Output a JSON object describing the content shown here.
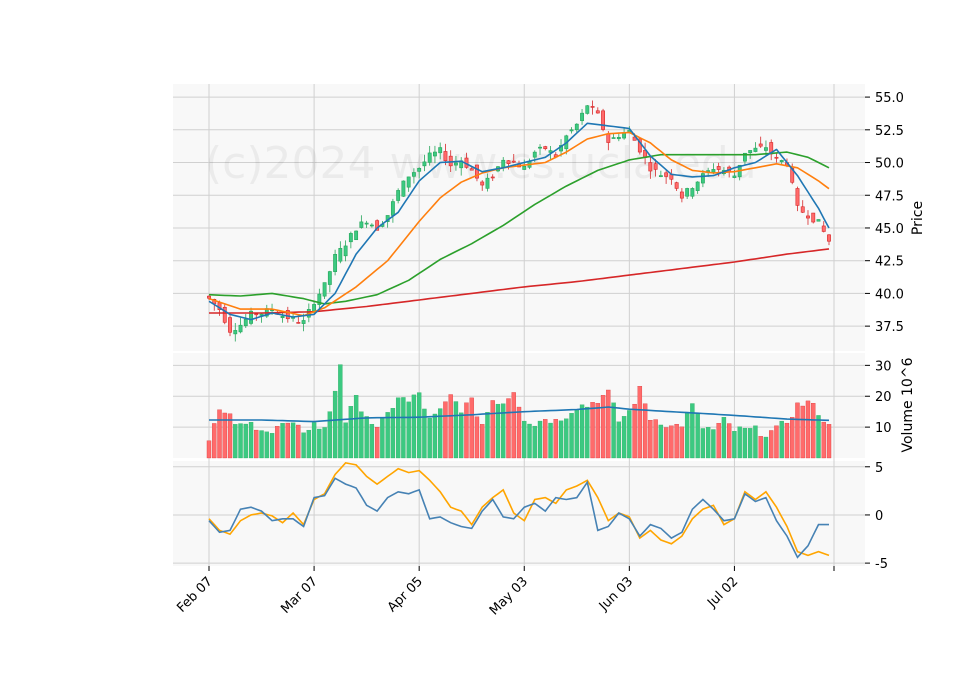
{
  "chart_data": {
    "type": "candlestick",
    "watermark": "(c)2024 www.cs.ucla.edu",
    "colors": {
      "up": "#26a65b",
      "up_fill": "#3cc981",
      "down": "#d62728",
      "down_fill": "#ff6b6b",
      "sma_fast": "#1f77b4",
      "sma_mid": "#ff7f0e",
      "sma_slow": "#2ca02c",
      "sma_long": "#d62728",
      "volume_ma": "#1f77b4",
      "osc_a": "#ffa500",
      "osc_b": "#4682b4",
      "panel_bg": "#f8f8f8",
      "grid": "#d0d0d0"
    },
    "x_tick_labels": [
      "Feb 07",
      "Mar 07",
      "Apr 05",
      "May 03",
      "Jun 03",
      "Jul 02"
    ],
    "x_tick_index": [
      0,
      20,
      40,
      60,
      80,
      100
    ],
    "n_days": 119,
    "price": {
      "ylabel": "Price",
      "ylim": [
        35.6,
        56.0
      ],
      "ticks": [
        37.5,
        40.0,
        42.5,
        45.0,
        47.5,
        50.0,
        52.5,
        55.0
      ],
      "tick_labels": [
        "37.5",
        "40.0",
        "42.5",
        "45.0",
        "47.5",
        "50.0",
        "52.5",
        "55.0"
      ],
      "close_anchors": [
        [
          0,
          39.6
        ],
        [
          2,
          38.8
        ],
        [
          4,
          37.2
        ],
        [
          6,
          37.6
        ],
        [
          8,
          38.4
        ],
        [
          10,
          38.5
        ],
        [
          12,
          38.8
        ],
        [
          14,
          38.3
        ],
        [
          16,
          38.0
        ],
        [
          18,
          37.8
        ],
        [
          20,
          39.4
        ],
        [
          22,
          40.6
        ],
        [
          24,
          42.8
        ],
        [
          26,
          43.8
        ],
        [
          28,
          45.0
        ],
        [
          30,
          45.6
        ],
        [
          32,
          45.0
        ],
        [
          34,
          46.0
        ],
        [
          36,
          47.8
        ],
        [
          38,
          49.0
        ],
        [
          40,
          49.6
        ],
        [
          42,
          50.5
        ],
        [
          44,
          50.9
        ],
        [
          46,
          49.8
        ],
        [
          48,
          50.2
        ],
        [
          50,
          49.4
        ],
        [
          52,
          48.2
        ],
        [
          54,
          49.0
        ],
        [
          56,
          50.3
        ],
        [
          58,
          50.0
        ],
        [
          60,
          49.6
        ],
        [
          62,
          50.8
        ],
        [
          64,
          51.1
        ],
        [
          66,
          50.5
        ],
        [
          68,
          52.0
        ],
        [
          70,
          52.9
        ],
        [
          72,
          54.4
        ],
        [
          74,
          53.6
        ],
        [
          76,
          51.6
        ],
        [
          78,
          52.1
        ],
        [
          80,
          52.4
        ],
        [
          82,
          51.0
        ],
        [
          84,
          49.6
        ],
        [
          86,
          49.1
        ],
        [
          88,
          48.9
        ],
        [
          90,
          47.4
        ],
        [
          92,
          48.2
        ],
        [
          94,
          49.0
        ],
        [
          96,
          49.6
        ],
        [
          98,
          49.4
        ],
        [
          100,
          49.0
        ],
        [
          102,
          50.8
        ],
        [
          104,
          51.0
        ],
        [
          106,
          51.2
        ],
        [
          108,
          50.2
        ],
        [
          110,
          50.0
        ],
        [
          112,
          46.5
        ],
        [
          114,
          46.0
        ],
        [
          116,
          45.4
        ],
        [
          118,
          44.0
        ]
      ],
      "sma_fast_anchors": [
        [
          0,
          39.4
        ],
        [
          4,
          38.4
        ],
        [
          8,
          38.0
        ],
        [
          12,
          38.5
        ],
        [
          16,
          38.2
        ],
        [
          20,
          38.4
        ],
        [
          24,
          40.0
        ],
        [
          28,
          43.0
        ],
        [
          32,
          45.0
        ],
        [
          36,
          46.2
        ],
        [
          40,
          48.6
        ],
        [
          44,
          50.0
        ],
        [
          48,
          50.1
        ],
        [
          52,
          49.3
        ],
        [
          56,
          49.6
        ],
        [
          60,
          50.0
        ],
        [
          64,
          50.4
        ],
        [
          68,
          51.5
        ],
        [
          72,
          53.0
        ],
        [
          76,
          52.8
        ],
        [
          80,
          52.6
        ],
        [
          84,
          50.5
        ],
        [
          88,
          49.1
        ],
        [
          92,
          48.9
        ],
        [
          96,
          49.0
        ],
        [
          100,
          49.6
        ],
        [
          104,
          50.0
        ],
        [
          108,
          51.0
        ],
        [
          112,
          49.0
        ],
        [
          116,
          46.5
        ],
        [
          118,
          45.0
        ]
      ],
      "sma_mid_anchors": [
        [
          0,
          39.6
        ],
        [
          6,
          38.8
        ],
        [
          12,
          38.8
        ],
        [
          18,
          38.3
        ],
        [
          22,
          38.9
        ],
        [
          28,
          40.5
        ],
        [
          34,
          42.5
        ],
        [
          40,
          45.5
        ],
        [
          44,
          47.3
        ],
        [
          48,
          48.5
        ],
        [
          52,
          49.2
        ],
        [
          56,
          49.6
        ],
        [
          60,
          49.8
        ],
        [
          64,
          50.0
        ],
        [
          68,
          50.8
        ],
        [
          72,
          51.8
        ],
        [
          76,
          52.2
        ],
        [
          80,
          52.3
        ],
        [
          84,
          51.5
        ],
        [
          88,
          50.2
        ],
        [
          92,
          49.4
        ],
        [
          96,
          49.2
        ],
        [
          100,
          49.3
        ],
        [
          104,
          49.6
        ],
        [
          108,
          49.9
        ],
        [
          112,
          49.6
        ],
        [
          116,
          48.6
        ],
        [
          118,
          48.0
        ]
      ],
      "sma_slow_anchors": [
        [
          0,
          39.9
        ],
        [
          6,
          39.8
        ],
        [
          12,
          40.0
        ],
        [
          18,
          39.6
        ],
        [
          22,
          39.2
        ],
        [
          26,
          39.4
        ],
        [
          32,
          39.9
        ],
        [
          38,
          41.0
        ],
        [
          44,
          42.6
        ],
        [
          50,
          43.8
        ],
        [
          56,
          45.2
        ],
        [
          62,
          46.8
        ],
        [
          68,
          48.2
        ],
        [
          74,
          49.4
        ],
        [
          80,
          50.2
        ],
        [
          86,
          50.6
        ],
        [
          92,
          50.6
        ],
        [
          98,
          50.6
        ],
        [
          104,
          50.6
        ],
        [
          110,
          50.8
        ],
        [
          114,
          50.4
        ],
        [
          118,
          49.6
        ]
      ],
      "sma_long_anchors": [
        [
          0,
          38.5
        ],
        [
          10,
          38.5
        ],
        [
          20,
          38.6
        ],
        [
          30,
          39.0
        ],
        [
          40,
          39.5
        ],
        [
          50,
          40.0
        ],
        [
          60,
          40.5
        ],
        [
          70,
          40.9
        ],
        [
          80,
          41.4
        ],
        [
          90,
          41.9
        ],
        [
          100,
          42.4
        ],
        [
          110,
          43.0
        ],
        [
          118,
          43.4
        ]
      ]
    },
    "volume": {
      "ylabel": "Volume  10^6",
      "ylim": [
        0,
        34
      ],
      "ticks": [
        10,
        20,
        30
      ],
      "tick_labels": [
        "10",
        "20",
        "30"
      ],
      "anchors": [
        [
          0,
          7
        ],
        [
          2,
          15
        ],
        [
          4,
          13
        ],
        [
          6,
          10
        ],
        [
          8,
          11
        ],
        [
          10,
          10
        ],
        [
          12,
          8
        ],
        [
          14,
          11
        ],
        [
          16,
          10
        ],
        [
          18,
          9
        ],
        [
          20,
          11
        ],
        [
          22,
          9
        ],
        [
          24,
          22
        ],
        [
          25,
          31
        ],
        [
          26,
          12
        ],
        [
          28,
          19
        ],
        [
          30,
          14
        ],
        [
          32,
          9
        ],
        [
          34,
          14
        ],
        [
          36,
          20
        ],
        [
          38,
          18
        ],
        [
          40,
          21
        ],
        [
          42,
          12
        ],
        [
          44,
          15
        ],
        [
          46,
          20
        ],
        [
          48,
          16
        ],
        [
          50,
          18
        ],
        [
          52,
          11
        ],
        [
          54,
          19
        ],
        [
          56,
          18
        ],
        [
          58,
          22
        ],
        [
          60,
          13
        ],
        [
          62,
          11
        ],
        [
          64,
          13
        ],
        [
          66,
          12
        ],
        [
          68,
          14
        ],
        [
          70,
          17
        ],
        [
          72,
          17
        ],
        [
          74,
          19
        ],
        [
          76,
          21
        ],
        [
          78,
          12
        ],
        [
          80,
          15
        ],
        [
          82,
          22
        ],
        [
          84,
          13
        ],
        [
          86,
          12
        ],
        [
          88,
          10
        ],
        [
          90,
          11
        ],
        [
          92,
          17
        ],
        [
          94,
          10
        ],
        [
          96,
          9
        ],
        [
          98,
          12
        ],
        [
          100,
          9
        ],
        [
          102,
          9
        ],
        [
          104,
          9
        ],
        [
          106,
          8
        ],
        [
          108,
          9
        ],
        [
          110,
          12
        ],
        [
          112,
          17
        ],
        [
          114,
          18
        ],
        [
          116,
          15
        ],
        [
          118,
          10
        ]
      ],
      "ma_anchors": [
        [
          0,
          12.3
        ],
        [
          10,
          12.3
        ],
        [
          20,
          11.8
        ],
        [
          30,
          13.0
        ],
        [
          40,
          13.2
        ],
        [
          50,
          14.0
        ],
        [
          60,
          15.0
        ],
        [
          70,
          15.7
        ],
        [
          76,
          16.5
        ],
        [
          80,
          15.8
        ],
        [
          90,
          14.8
        ],
        [
          100,
          13.8
        ],
        [
          110,
          12.6
        ],
        [
          118,
          12.2
        ]
      ]
    },
    "oscillator": {
      "ylim": [
        -5.3,
        5.6
      ],
      "ticks": [
        -5,
        0,
        5
      ],
      "tick_labels": [
        "-5",
        "0",
        "5"
      ],
      "line_a_anchors": [
        [
          0,
          -0.4
        ],
        [
          2,
          -1.6
        ],
        [
          4,
          -2.0
        ],
        [
          6,
          -0.6
        ],
        [
          8,
          0.0
        ],
        [
          10,
          0.2
        ],
        [
          12,
          -0.1
        ],
        [
          14,
          -0.8
        ],
        [
          16,
          0.2
        ],
        [
          18,
          -1.0
        ],
        [
          20,
          1.6
        ],
        [
          22,
          2.2
        ],
        [
          24,
          4.2
        ],
        [
          26,
          5.4
        ],
        [
          28,
          5.2
        ],
        [
          30,
          4.0
        ],
        [
          32,
          3.2
        ],
        [
          34,
          4.0
        ],
        [
          36,
          4.8
        ],
        [
          38,
          4.4
        ],
        [
          40,
          4.6
        ],
        [
          42,
          3.6
        ],
        [
          44,
          2.4
        ],
        [
          46,
          0.8
        ],
        [
          48,
          0.4
        ],
        [
          50,
          -1.0
        ],
        [
          52,
          0.8
        ],
        [
          54,
          1.8
        ],
        [
          56,
          2.6
        ],
        [
          58,
          0.2
        ],
        [
          60,
          -0.6
        ],
        [
          62,
          1.6
        ],
        [
          64,
          1.8
        ],
        [
          66,
          1.2
        ],
        [
          68,
          2.6
        ],
        [
          70,
          3.0
        ],
        [
          72,
          3.6
        ],
        [
          74,
          1.8
        ],
        [
          76,
          -0.6
        ],
        [
          78,
          0.2
        ],
        [
          80,
          -0.2
        ],
        [
          82,
          -2.4
        ],
        [
          84,
          -1.6
        ],
        [
          86,
          -2.6
        ],
        [
          88,
          -3.0
        ],
        [
          90,
          -2.2
        ],
        [
          92,
          -0.4
        ],
        [
          94,
          0.6
        ],
        [
          96,
          1.0
        ],
        [
          98,
          -1.0
        ],
        [
          100,
          -0.4
        ],
        [
          102,
          2.4
        ],
        [
          104,
          1.6
        ],
        [
          106,
          2.4
        ],
        [
          108,
          0.8
        ],
        [
          110,
          -1.2
        ],
        [
          112,
          -3.8
        ],
        [
          114,
          -4.2
        ],
        [
          116,
          -3.8
        ],
        [
          118,
          -4.2
        ]
      ],
      "line_b_anchors": [
        [
          0,
          -0.6
        ],
        [
          2,
          -1.8
        ],
        [
          4,
          -1.6
        ],
        [
          6,
          0.6
        ],
        [
          8,
          0.8
        ],
        [
          10,
          0.4
        ],
        [
          12,
          -0.6
        ],
        [
          14,
          -0.4
        ],
        [
          16,
          -0.4
        ],
        [
          18,
          -1.2
        ],
        [
          20,
          1.8
        ],
        [
          22,
          2.0
        ],
        [
          24,
          3.8
        ],
        [
          26,
          3.2
        ],
        [
          28,
          2.8
        ],
        [
          30,
          1.0
        ],
        [
          32,
          0.4
        ],
        [
          34,
          1.8
        ],
        [
          36,
          2.4
        ],
        [
          38,
          2.2
        ],
        [
          40,
          2.6
        ],
        [
          42,
          -0.4
        ],
        [
          44,
          -0.2
        ],
        [
          46,
          -0.8
        ],
        [
          48,
          -1.2
        ],
        [
          50,
          -1.4
        ],
        [
          52,
          0.4
        ],
        [
          54,
          1.6
        ],
        [
          56,
          -0.2
        ],
        [
          58,
          -0.4
        ],
        [
          60,
          0.8
        ],
        [
          62,
          1.2
        ],
        [
          64,
          0.4
        ],
        [
          66,
          1.8
        ],
        [
          68,
          1.6
        ],
        [
          70,
          1.8
        ],
        [
          72,
          3.4
        ],
        [
          74,
          -1.6
        ],
        [
          76,
          -1.2
        ],
        [
          78,
          0.2
        ],
        [
          80,
          -0.4
        ],
        [
          82,
          -2.2
        ],
        [
          84,
          -1.0
        ],
        [
          86,
          -1.4
        ],
        [
          88,
          -2.4
        ],
        [
          90,
          -1.8
        ],
        [
          92,
          0.6
        ],
        [
          94,
          1.6
        ],
        [
          96,
          0.6
        ],
        [
          98,
          -0.6
        ],
        [
          100,
          -0.4
        ],
        [
          102,
          2.2
        ],
        [
          104,
          1.4
        ],
        [
          106,
          1.8
        ],
        [
          108,
          -0.6
        ],
        [
          110,
          -2.2
        ],
        [
          112,
          -4.4
        ],
        [
          114,
          -3.2
        ],
        [
          116,
          -1.0
        ],
        [
          118,
          -1.0
        ]
      ]
    }
  }
}
